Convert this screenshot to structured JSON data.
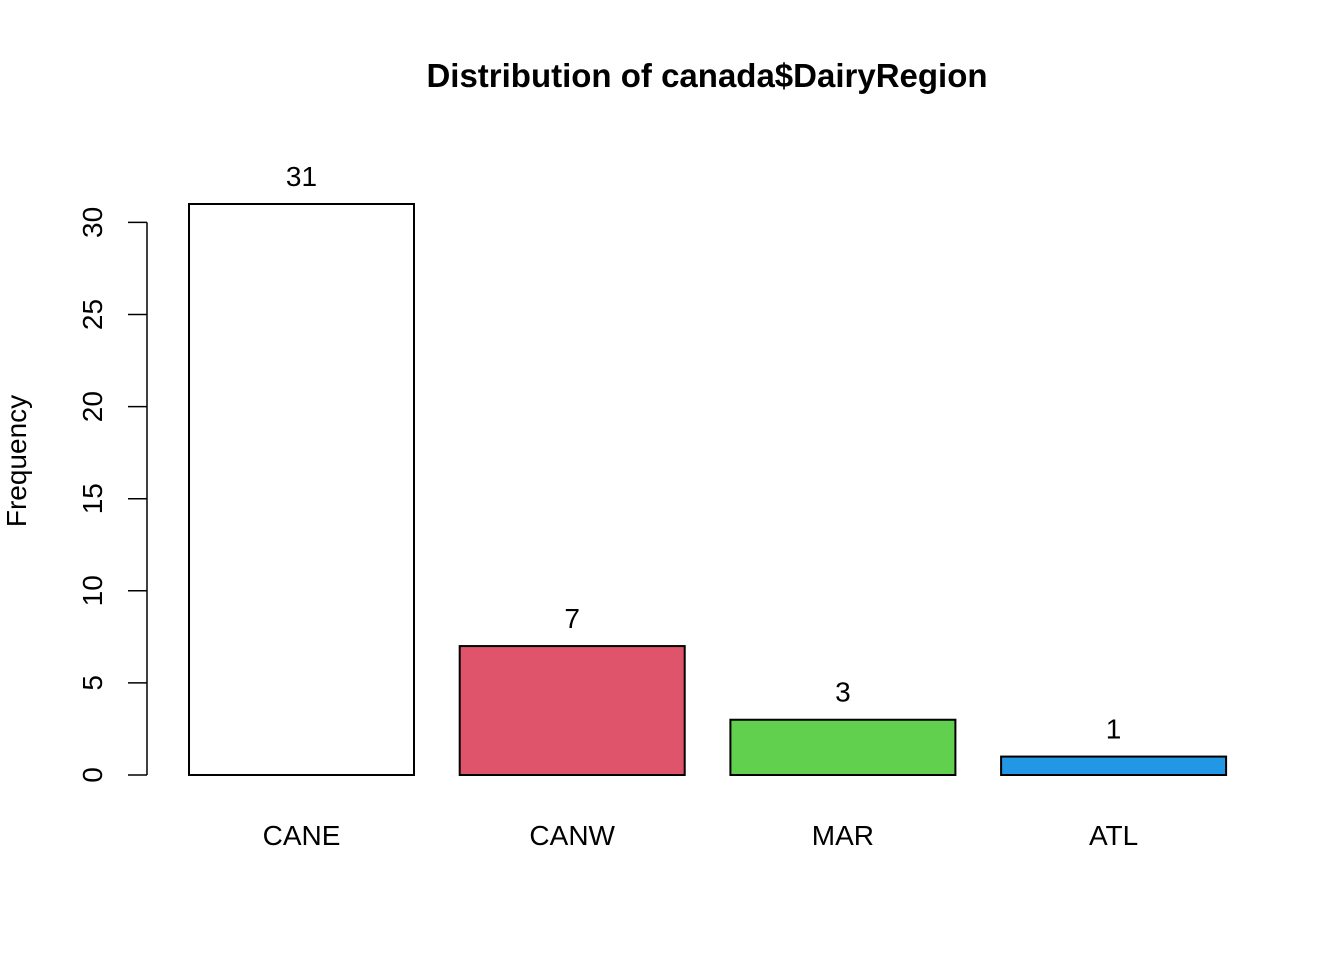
{
  "chart_data": {
    "type": "bar",
    "title": "Distribution of canada$DairyRegion",
    "xlabel": "",
    "ylabel": "Frequency",
    "categories": [
      "CANE",
      "CANW",
      "MAR",
      "ATL"
    ],
    "values": [
      31,
      7,
      3,
      1
    ],
    "data_labels": [
      "31",
      "7",
      "3",
      "1"
    ],
    "colors": [
      "#ffffff",
      "#df536b",
      "#61d04f",
      "#2297e6"
    ],
    "ylim": [
      0,
      31
    ],
    "yticks": [
      0,
      5,
      10,
      15,
      20,
      25,
      30
    ],
    "ytick_labels": [
      "0",
      "5",
      "10",
      "15",
      "20",
      "25",
      "30"
    ],
    "grid": false,
    "legend": "none"
  }
}
